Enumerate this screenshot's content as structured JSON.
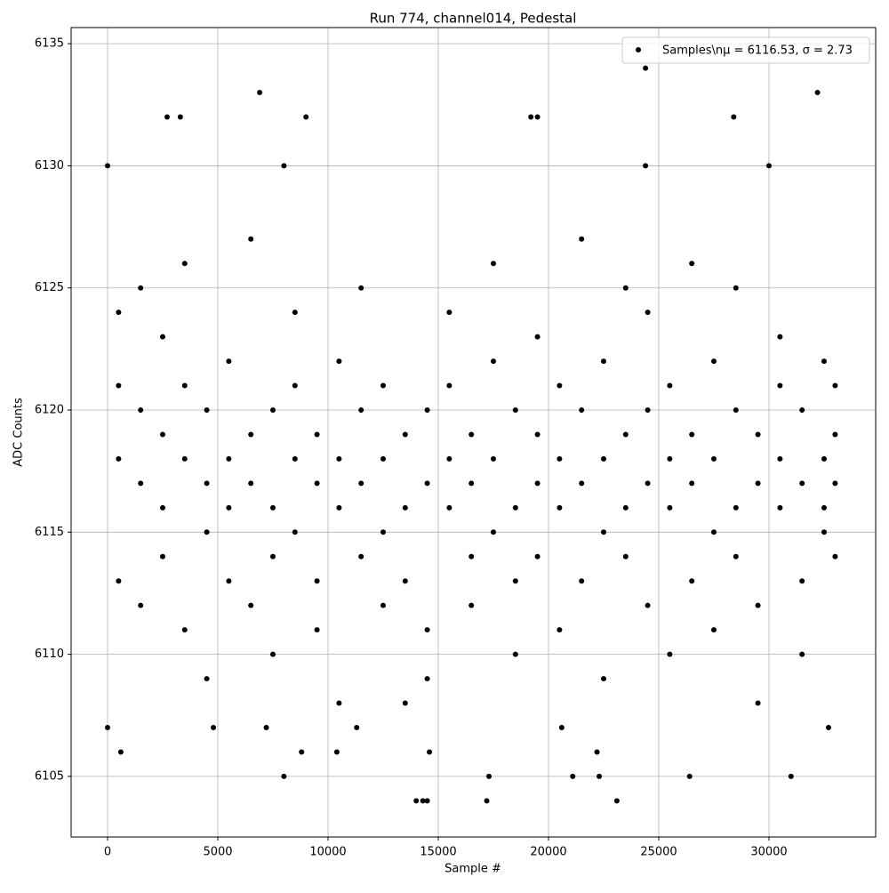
{
  "chart_data": {
    "type": "scatter",
    "title": "Run 774, channel014, Pedestal",
    "x_label": "Sample #",
    "y_label": "ADC Counts",
    "xlim": [
      -1653,
      34839
    ],
    "ylim": [
      6102.52,
      6135.66
    ],
    "xticks": [
      0,
      5000,
      10000,
      15000,
      20000,
      25000,
      30000
    ],
    "yticks": [
      6105,
      6110,
      6115,
      6120,
      6125,
      6130,
      6135
    ],
    "grid": true,
    "legend": "upper right",
    "series": [
      {
        "name": "Samples\\nμ = 6116.53, σ = 2.73",
        "color": "#000000",
        "x": [
          24400,
          6900,
          32200,
          2700,
          3300,
          9000,
          19200,
          19500,
          28400,
          0,
          8000,
          30000,
          24400,
          14000,
          14300,
          14500,
          17200,
          23100,
          8000,
          17300,
          21100,
          22300,
          26400,
          31000,
          600,
          8800,
          10400,
          14600,
          22200,
          0,
          4800,
          7200,
          11300,
          20600,
          32700,
          500,
          500,
          500,
          500,
          1500,
          1500,
          1500,
          1500,
          2500,
          2500,
          2500,
          2500,
          3500,
          3500,
          3500,
          3500,
          4500,
          4500,
          4500,
          4500,
          5500,
          5500,
          5500,
          5500,
          6500,
          6500,
          6500,
          6500,
          7500,
          7500,
          7500,
          7500,
          8500,
          8500,
          8500,
          8500,
          9500,
          9500,
          9500,
          9500,
          10500,
          10500,
          10500,
          10500,
          11500,
          11500,
          11500,
          11500,
          12500,
          12500,
          12500,
          12500,
          13500,
          13500,
          13500,
          13500,
          14500,
          14500,
          14500,
          14500,
          15500,
          15500,
          15500,
          15500,
          16500,
          16500,
          16500,
          16500,
          17500,
          17500,
          17500,
          17500,
          18500,
          18500,
          18500,
          18500,
          19500,
          19500,
          19500,
          19500,
          20500,
          20500,
          20500,
          20500,
          21500,
          21500,
          21500,
          21500,
          22500,
          22500,
          22500,
          22500,
          23500,
          23500,
          23500,
          23500,
          24500,
          24500,
          24500,
          24500,
          25500,
          25500,
          25500,
          25500,
          26500,
          26500,
          26500,
          26500,
          27500,
          27500,
          27500,
          27500,
          28500,
          28500,
          28500,
          28500,
          29500,
          29500,
          29500,
          29500,
          30500,
          30500,
          30500,
          30500,
          31500,
          31500,
          31500,
          31500,
          32500,
          32500,
          32500,
          32500,
          33000,
          33000,
          33000,
          33000
        ],
        "values": [
          6134,
          6133,
          6133,
          6132,
          6132,
          6132,
          6132,
          6132,
          6132,
          6130,
          6130,
          6130,
          6130,
          6104,
          6104,
          6104,
          6104,
          6104,
          6105,
          6105,
          6105,
          6105,
          6105,
          6105,
          6106,
          6106,
          6106,
          6106,
          6106,
          6107,
          6107,
          6107,
          6107,
          6107,
          6107,
          6118,
          6121,
          6113,
          6124,
          6117,
          6120,
          6112,
          6125,
          6116,
          6119,
          6114,
          6123,
          6118,
          6121,
          6111,
          6126,
          6115,
          6117,
          6120,
          6109,
          6116,
          6118,
          6122,
          6113,
          6117,
          6119,
          6112,
          6127,
          6116,
          6120,
          6114,
          6110,
          6118,
          6115,
          6121,
          6124,
          6117,
          6119,
          6113,
          6111,
          6116,
          6118,
          6122,
          6108,
          6117,
          6120,
          6114,
          6125,
          6115,
          6118,
          6121,
          6112,
          6116,
          6119,
          6113,
          6108,
          6117,
          6120,
          6111,
          6109,
          6116,
          6118,
          6121,
          6124,
          6117,
          6119,
          6114,
          6112,
          6115,
          6118,
          6122,
          6126,
          6116,
          6120,
          6113,
          6110,
          6117,
          6119,
          6114,
          6123,
          6116,
          6118,
          6121,
          6111,
          6117,
          6120,
          6113,
          6127,
          6115,
          6118,
          6122,
          6109,
          6116,
          6119,
          6114,
          6125,
          6117,
          6120,
          6112,
          6124,
          6116,
          6118,
          6121,
          6110,
          6117,
          6119,
          6113,
          6126,
          6115,
          6118,
          6122,
          6111,
          6116,
          6120,
          6114,
          6125,
          6117,
          6119,
          6112,
          6108,
          6116,
          6118,
          6121,
          6123,
          6117,
          6120,
          6113,
          6110,
          6116,
          6118,
          6115,
          6122,
          6117,
          6119,
          6114,
          6121
        ]
      }
    ]
  }
}
